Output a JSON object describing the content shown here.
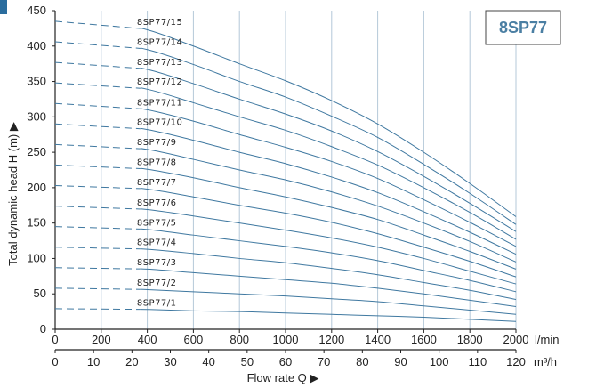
{
  "colors": {
    "curve": "#3f78a0",
    "grid": "#b4c8d8",
    "axis": "#222222",
    "title": "#4b7fa3",
    "accent_mark": "#2a6d9e"
  },
  "chart_data": {
    "type": "line",
    "title": "8SP77",
    "xlabel": "Flow rate Q ▶",
    "ylabel": "Total dynamic head H (m) ▶",
    "x_unit": "l/min",
    "x2_unit": "m³/h",
    "xlim": [
      0,
      2000
    ],
    "ylim": [
      0,
      450
    ],
    "x_ticks": [
      0,
      200,
      400,
      600,
      800,
      1000,
      1200,
      1400,
      1600,
      1800,
      2000
    ],
    "x2_ticks": [
      0,
      10,
      20,
      30,
      40,
      50,
      60,
      70,
      80,
      90,
      100,
      110,
      120
    ],
    "y_ticks": [
      0,
      50,
      100,
      150,
      200,
      250,
      300,
      350,
      400,
      450
    ],
    "grid": "vertical",
    "dashed_segment_end_x": 370,
    "x": [
      0,
      200,
      400,
      600,
      800,
      1000,
      1200,
      1400,
      1600,
      1800,
      2000
    ],
    "series": [
      {
        "name": "8SP77/1",
        "values": [
          29,
          29,
          28,
          26,
          25,
          23,
          21,
          19,
          17,
          14,
          11
        ]
      },
      {
        "name": "8SP77/2",
        "values": [
          58,
          58,
          56,
          53,
          50,
          47,
          43,
          39,
          33,
          27,
          21
        ]
      },
      {
        "name": "8SP77/3",
        "values": [
          87,
          87,
          85,
          80,
          75,
          70,
          65,
          58,
          50,
          41,
          32
        ]
      },
      {
        "name": "8SP77/4",
        "values": [
          116,
          116,
          113,
          107,
          100,
          94,
          86,
          77,
          66,
          55,
          42
        ]
      },
      {
        "name": "8SP77/5",
        "values": [
          145,
          145,
          141,
          133,
          125,
          117,
          108,
          97,
          83,
          69,
          53
        ]
      },
      {
        "name": "8SP77/6",
        "values": [
          174,
          174,
          169,
          160,
          150,
          140,
          129,
          116,
          100,
          82,
          64
        ]
      },
      {
        "name": "8SP77/7",
        "values": [
          203,
          203,
          198,
          187,
          175,
          164,
          151,
          135,
          116,
          96,
          74
        ]
      },
      {
        "name": "8SP77/8",
        "values": [
          232,
          232,
          226,
          214,
          200,
          187,
          172,
          155,
          133,
          110,
          85
        ]
      },
      {
        "name": "8SP77/9",
        "values": [
          261,
          261,
          254,
          240,
          225,
          211,
          194,
          174,
          150,
          124,
          95
        ]
      },
      {
        "name": "8SP77/10",
        "values": [
          290,
          290,
          282,
          267,
          250,
          234,
          215,
          193,
          166,
          137,
          106
        ]
      },
      {
        "name": "8SP77/11",
        "values": [
          319,
          319,
          310,
          294,
          275,
          257,
          237,
          213,
          183,
          151,
          117
        ]
      },
      {
        "name": "8SP77/12",
        "values": [
          348,
          348,
          339,
          320,
          300,
          281,
          258,
          232,
          200,
          165,
          127
        ]
      },
      {
        "name": "8SP77/13",
        "values": [
          377,
          377,
          367,
          347,
          325,
          304,
          280,
          251,
          216,
          178,
          138
        ]
      },
      {
        "name": "8SP77/14",
        "values": [
          406,
          406,
          395,
          374,
          350,
          328,
          301,
          271,
          233,
          192,
          148
        ]
      },
      {
        "name": "8SP77/15",
        "values": [
          435,
          435,
          423,
          400,
          375,
          351,
          323,
          290,
          250,
          206,
          159
        ]
      }
    ]
  }
}
